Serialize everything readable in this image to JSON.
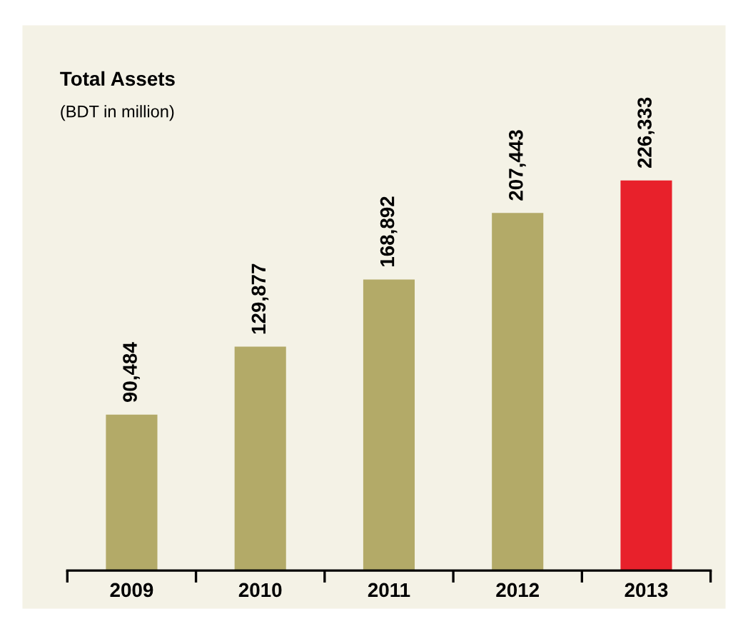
{
  "chart_data": {
    "type": "bar",
    "title": "Total Assets",
    "subtitle": "(BDT in million)",
    "categories": [
      "2009",
      "2010",
      "2011",
      "2012",
      "2013"
    ],
    "values": [
      90484,
      129877,
      168892,
      207443,
      226333
    ],
    "colors": [
      "#b3aa68",
      "#b3aa68",
      "#b3aa68",
      "#b3aa68",
      "#e8212b"
    ],
    "value_labels": [
      "90,484",
      "129,877",
      "168,892",
      "207,443",
      "226,333"
    ],
    "grid": false,
    "legend": false
  }
}
